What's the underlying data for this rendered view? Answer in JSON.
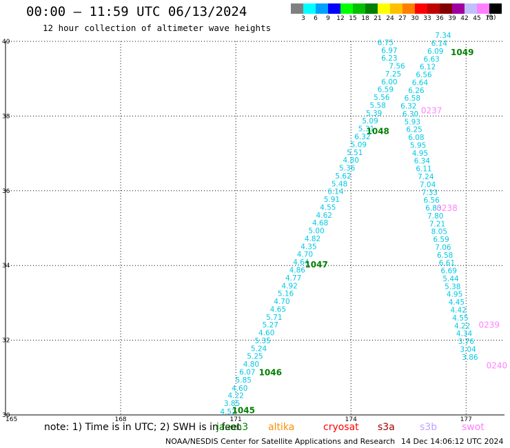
{
  "header": {
    "title": "00:00 – 11:59 UTC 06/13/2024",
    "subtitle": "12 hour collection of altimeter wave heights"
  },
  "legend": {
    "colors": [
      "#808080",
      "#00ffff",
      "#00a0ff",
      "#0000ff",
      "#00ff00",
      "#00c000",
      "#008000",
      "#ffff00",
      "#ffc000",
      "#ff8000",
      "#ff0000",
      "#c00000",
      "#800000",
      "#a000a0",
      "#c0c0ff",
      "#ff80ff",
      "#000000"
    ],
    "labels": [
      "3",
      "6",
      "9",
      "12",
      "15",
      "18",
      "21",
      "24",
      "27",
      "30",
      "33",
      "36",
      "39",
      "42",
      "45",
      "70"
    ],
    "unit": "(ft)"
  },
  "note": "note: 1) Time is in UTC; 2) SWH is in feet",
  "satellites": [
    {
      "name": "jason3",
      "color": "#008000"
    },
    {
      "name": "altika",
      "color": "#ff8c00"
    },
    {
      "name": "cryosat",
      "color": "#ff0000"
    },
    {
      "name": "s3a",
      "color": "#a00000"
    },
    {
      "name": "s3b",
      "color": "#c0a0ff"
    },
    {
      "name": "swot",
      "color": "#ff80ff"
    }
  ],
  "footer": {
    "source": "NOAA/NESDIS Center for Satellite Applications and Research",
    "timestamp": "14 Dec 14:06:12 UTC 2024"
  },
  "chart_data": {
    "type": "scatter",
    "title": "00:00 – 11:59 UTC 06/13/2024",
    "subtitle": "12 hour collection of altimeter wave heights",
    "xlim": [
      165,
      178
    ],
    "ylim": [
      30,
      40
    ],
    "x_ticks": [
      165,
      168,
      171,
      174,
      177
    ],
    "y_ticks": [
      30,
      32,
      34,
      36,
      38,
      40
    ],
    "grid": true,
    "value_color": "#00c8e6",
    "track1_color": "#00c8e6",
    "pass_color": "#008000",
    "swot_color": "#ff80ff",
    "track1": [
      {
        "x": 170.8,
        "y": 30.02,
        "v": "4.52"
      },
      {
        "x": 170.9,
        "y": 30.24,
        "v": "3.85"
      },
      {
        "x": 171.0,
        "y": 30.45,
        "v": "4.22"
      },
      {
        "x": 171.1,
        "y": 30.65,
        "v": "4.60"
      },
      {
        "x": 171.2,
        "y": 30.87,
        "v": "5.85"
      },
      {
        "x": 171.3,
        "y": 31.08,
        "v": "6.07"
      },
      {
        "x": 171.4,
        "y": 31.29,
        "v": "4.80"
      },
      {
        "x": 171.5,
        "y": 31.5,
        "v": "5.25"
      },
      {
        "x": 171.6,
        "y": 31.71,
        "v": "5.24"
      },
      {
        "x": 171.7,
        "y": 31.92,
        "v": "5.35"
      },
      {
        "x": 171.8,
        "y": 32.13,
        "v": "4.60"
      },
      {
        "x": 171.9,
        "y": 32.34,
        "v": "5.27"
      },
      {
        "x": 172.0,
        "y": 32.55,
        "v": "5.71"
      },
      {
        "x": 172.1,
        "y": 32.76,
        "v": "4.65"
      },
      {
        "x": 172.2,
        "y": 32.97,
        "v": "4.70"
      },
      {
        "x": 172.3,
        "y": 33.18,
        "v": "5.16"
      },
      {
        "x": 172.4,
        "y": 33.39,
        "v": "4.92"
      },
      {
        "x": 172.5,
        "y": 33.6,
        "v": "4.77"
      },
      {
        "x": 172.6,
        "y": 33.81,
        "v": "4.86"
      },
      {
        "x": 172.7,
        "y": 34.02,
        "v": "4.64"
      },
      {
        "x": 172.8,
        "y": 34.23,
        "v": "4.70"
      },
      {
        "x": 172.9,
        "y": 34.44,
        "v": "4.35"
      },
      {
        "x": 173.0,
        "y": 34.65,
        "v": "4.82"
      },
      {
        "x": 173.1,
        "y": 34.86,
        "v": "5.00"
      },
      {
        "x": 173.2,
        "y": 35.07,
        "v": "4.68"
      },
      {
        "x": 173.3,
        "y": 35.28,
        "v": "4.62"
      },
      {
        "x": 173.4,
        "y": 35.49,
        "v": "4.55"
      },
      {
        "x": 173.5,
        "y": 35.7,
        "v": "5.91"
      },
      {
        "x": 173.6,
        "y": 35.91,
        "v": "6.14"
      },
      {
        "x": 173.7,
        "y": 36.12,
        "v": "5.48"
      },
      {
        "x": 173.8,
        "y": 36.33,
        "v": "5.62"
      },
      {
        "x": 173.9,
        "y": 36.54,
        "v": "5.36"
      },
      {
        "x": 174.0,
        "y": 36.75,
        "v": "4.80"
      },
      {
        "x": 174.1,
        "y": 36.96,
        "v": "5.51"
      },
      {
        "x": 174.2,
        "y": 37.17,
        "v": "5.09"
      },
      {
        "x": 174.3,
        "y": 37.38,
        "v": "6.32"
      },
      {
        "x": 174.4,
        "y": 37.59,
        "v": "5.31"
      },
      {
        "x": 174.5,
        "y": 37.8,
        "v": "5.09"
      },
      {
        "x": 174.6,
        "y": 38.01,
        "v": "5.39"
      },
      {
        "x": 174.7,
        "y": 38.22,
        "v": "5.58"
      },
      {
        "x": 174.8,
        "y": 38.43,
        "v": "5.56"
      },
      {
        "x": 174.9,
        "y": 38.64,
        "v": "6.59"
      },
      {
        "x": 175.0,
        "y": 38.85,
        "v": "6.00"
      },
      {
        "x": 175.1,
        "y": 39.06,
        "v": "7.25"
      },
      {
        "x": 175.2,
        "y": 39.27,
        "v": "7.56"
      },
      {
        "x": 175.0,
        "y": 39.48,
        "v": "6.23"
      },
      {
        "x": 175.0,
        "y": 39.69,
        "v": "6.97"
      },
      {
        "x": 174.9,
        "y": 39.9,
        "v": "6.75"
      },
      {
        "x": 174.8,
        "y": 40.11,
        "v": "6.95"
      },
      {
        "x": 174.8,
        "y": 40.32,
        "v": "6.96"
      }
    ],
    "track2": [
      {
        "x": 176.5,
        "y": 40.3,
        "v": "7.80"
      },
      {
        "x": 176.4,
        "y": 40.09,
        "v": "7.34"
      },
      {
        "x": 176.3,
        "y": 39.88,
        "v": "6.14"
      },
      {
        "x": 176.2,
        "y": 39.67,
        "v": "6.09"
      },
      {
        "x": 176.1,
        "y": 39.46,
        "v": "6.63"
      },
      {
        "x": 176.0,
        "y": 39.25,
        "v": "6.12"
      },
      {
        "x": 175.9,
        "y": 39.04,
        "v": "6.56"
      },
      {
        "x": 175.8,
        "y": 38.83,
        "v": "6.64"
      },
      {
        "x": 175.7,
        "y": 38.62,
        "v": "6.26"
      },
      {
        "x": 175.6,
        "y": 38.41,
        "v": "6.58"
      },
      {
        "x": 175.5,
        "y": 38.2,
        "v": "6.32"
      },
      {
        "x": 175.55,
        "y": 37.99,
        "v": "6.30"
      },
      {
        "x": 175.6,
        "y": 37.78,
        "v": "5.93"
      },
      {
        "x": 175.65,
        "y": 37.57,
        "v": "6.25"
      },
      {
        "x": 175.7,
        "y": 37.36,
        "v": "6.08"
      },
      {
        "x": 175.75,
        "y": 37.15,
        "v": "5.95"
      },
      {
        "x": 175.8,
        "y": 36.94,
        "v": "4.95"
      },
      {
        "x": 175.85,
        "y": 36.73,
        "v": "6.34"
      },
      {
        "x": 175.9,
        "y": 36.52,
        "v": "6.11"
      },
      {
        "x": 175.95,
        "y": 36.31,
        "v": "7.24"
      },
      {
        "x": 176.0,
        "y": 36.1,
        "v": "7.04"
      },
      {
        "x": 176.05,
        "y": 35.89,
        "v": "7.33"
      },
      {
        "x": 176.1,
        "y": 35.68,
        "v": "6.56"
      },
      {
        "x": 176.15,
        "y": 35.47,
        "v": "6.83"
      },
      {
        "x": 176.2,
        "y": 35.26,
        "v": "7.80"
      },
      {
        "x": 176.25,
        "y": 35.05,
        "v": "7.21"
      },
      {
        "x": 176.3,
        "y": 34.84,
        "v": "8.05"
      },
      {
        "x": 176.35,
        "y": 34.63,
        "v": "6.59"
      },
      {
        "x": 176.4,
        "y": 34.42,
        "v": "7.06"
      },
      {
        "x": 176.45,
        "y": 34.21,
        "v": "6.58"
      },
      {
        "x": 176.5,
        "y": 34.0,
        "v": "6.61"
      },
      {
        "x": 176.55,
        "y": 33.79,
        "v": "6.69"
      },
      {
        "x": 176.6,
        "y": 33.58,
        "v": "5.44"
      },
      {
        "x": 176.65,
        "y": 33.37,
        "v": "5.38"
      },
      {
        "x": 176.7,
        "y": 33.16,
        "v": "4.95"
      },
      {
        "x": 176.75,
        "y": 32.95,
        "v": "4.45"
      },
      {
        "x": 176.8,
        "y": 32.74,
        "v": "4.42"
      },
      {
        "x": 176.85,
        "y": 32.53,
        "v": "4.55"
      },
      {
        "x": 176.9,
        "y": 32.32,
        "v": "4.22"
      },
      {
        "x": 176.95,
        "y": 32.11,
        "v": "4.34"
      },
      {
        "x": 177.0,
        "y": 31.9,
        "v": "3.76"
      },
      {
        "x": 177.05,
        "y": 31.69,
        "v": "3.04"
      },
      {
        "x": 177.1,
        "y": 31.48,
        "v": "3.86"
      }
    ],
    "pass_times": [
      {
        "x": 171.2,
        "y": 30.05,
        "v": "1045"
      },
      {
        "x": 171.9,
        "y": 31.06,
        "v": "1046"
      },
      {
        "x": 173.1,
        "y": 33.95,
        "v": "1047"
      },
      {
        "x": 174.7,
        "y": 37.52,
        "v": "1048"
      },
      {
        "x": 176.9,
        "y": 39.63,
        "v": "1049"
      }
    ],
    "swot_times": [
      {
        "x": 176.1,
        "y": 38.07,
        "v": "0237"
      },
      {
        "x": 176.5,
        "y": 35.46,
        "v": "0238"
      },
      {
        "x": 177.6,
        "y": 32.33,
        "v": "0239"
      },
      {
        "x": 177.8,
        "y": 31.25,
        "v": "0240"
      }
    ]
  }
}
